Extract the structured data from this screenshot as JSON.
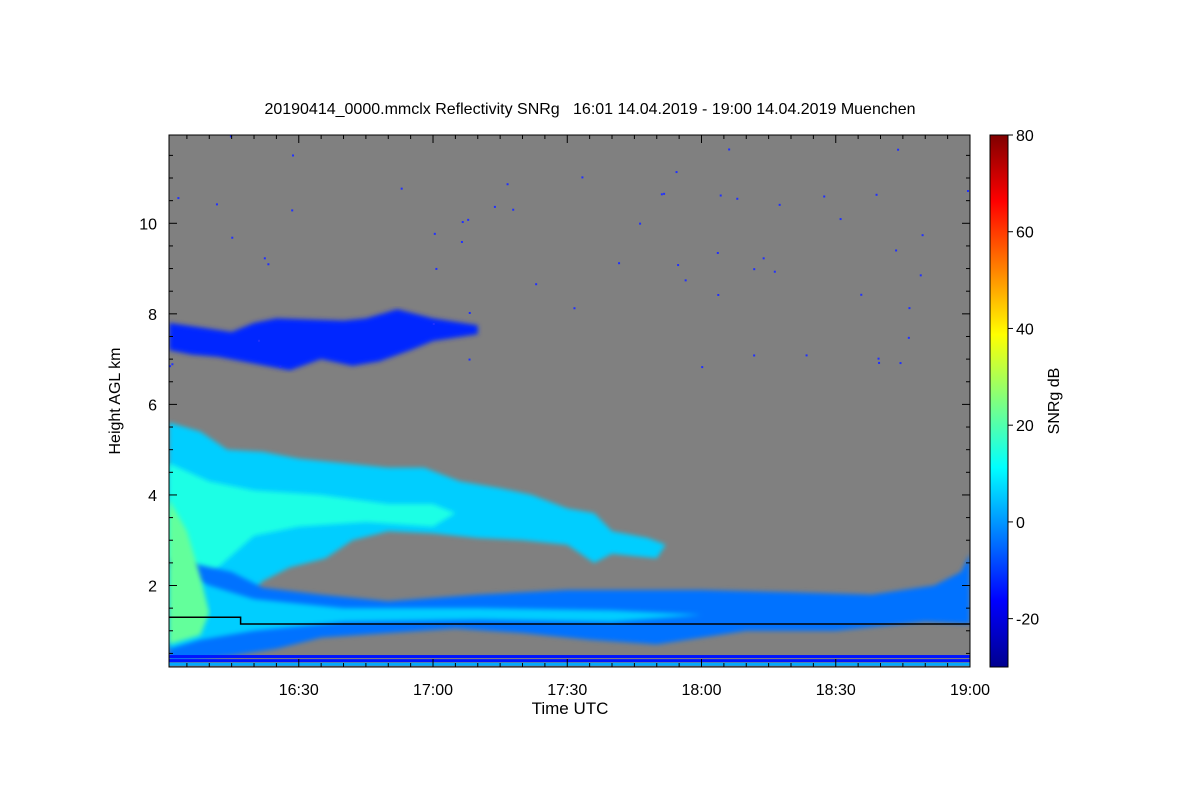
{
  "chart_data": {
    "type": "heatmap",
    "title": "20190414_0000.mmclx Reflectivity SNRg   16:01 14.04.2019 - 19:00 14.04.2019 Muenchen",
    "xlabel": "Time UTC",
    "ylabel": "Height AGL km",
    "colorbar_label": "SNRg dB",
    "xlim_minutes_after_1600": [
      1,
      180
    ],
    "ylim_km": [
      0.2,
      11.95
    ],
    "clim_db": [
      -30,
      80
    ],
    "x_ticks": [
      {
        "label": "16:30",
        "min": 30
      },
      {
        "label": "17:00",
        "min": 60
      },
      {
        "label": "17:30",
        "min": 90
      },
      {
        "label": "18:00",
        "min": 120
      },
      {
        "label": "18:30",
        "min": 150
      },
      {
        "label": "19:00",
        "min": 180
      }
    ],
    "y_ticks": [
      {
        "label": "2",
        "km": 2
      },
      {
        "label": "4",
        "km": 4
      },
      {
        "label": "6",
        "km": 6
      },
      {
        "label": "8",
        "km": 8
      },
      {
        "label": "10",
        "km": 10
      }
    ],
    "colorbar_ticks": [
      {
        "label": "-20",
        "db": -20
      },
      {
        "label": "0",
        "db": 0
      },
      {
        "label": "20",
        "db": 20
      },
      {
        "label": "40",
        "db": 40
      },
      {
        "label": "60",
        "db": 60
      },
      {
        "label": "80",
        "db": 80
      }
    ],
    "background_color": "#808080",
    "layers": [
      {
        "name": "cirrus",
        "snr_db": -12,
        "outline": [
          [
            1,
            7.8
          ],
          [
            8,
            7.7
          ],
          [
            15,
            7.6
          ],
          [
            20,
            7.8
          ],
          [
            25,
            7.9
          ],
          [
            40,
            7.85
          ],
          [
            45,
            7.9
          ],
          [
            52,
            8.1
          ],
          [
            60,
            7.9
          ],
          [
            70,
            7.75
          ],
          [
            70,
            7.55
          ],
          [
            60,
            7.4
          ],
          [
            55,
            7.2
          ],
          [
            48,
            6.95
          ],
          [
            42,
            6.85
          ],
          [
            35,
            7.0
          ],
          [
            28,
            6.75
          ],
          [
            20,
            6.9
          ],
          [
            12,
            7.05
          ],
          [
            6,
            7.1
          ],
          [
            1,
            7.2
          ]
        ]
      },
      {
        "name": "mid-layer",
        "snr_db": 6,
        "outline": [
          [
            1,
            5.6
          ],
          [
            8,
            5.4
          ],
          [
            14,
            5.0
          ],
          [
            22,
            4.95
          ],
          [
            30,
            4.8
          ],
          [
            40,
            4.7
          ],
          [
            50,
            4.6
          ],
          [
            58,
            4.6
          ],
          [
            66,
            4.3
          ],
          [
            75,
            4.15
          ],
          [
            82,
            4.0
          ],
          [
            90,
            3.7
          ],
          [
            96,
            3.6
          ],
          [
            100,
            3.2
          ],
          [
            108,
            3.05
          ],
          [
            112,
            2.9
          ],
          [
            110,
            2.6
          ],
          [
            100,
            2.7
          ],
          [
            96,
            2.5
          ],
          [
            90,
            2.9
          ],
          [
            80,
            3.0
          ],
          [
            70,
            3.05
          ],
          [
            60,
            3.15
          ],
          [
            50,
            3.2
          ],
          [
            42,
            3.0
          ],
          [
            36,
            2.6
          ],
          [
            28,
            2.4
          ],
          [
            22,
            2.1
          ],
          [
            18,
            1.7
          ],
          [
            10,
            1.5
          ],
          [
            1,
            1.5
          ]
        ]
      },
      {
        "name": "mid-layer-core",
        "snr_db": 14,
        "outline": [
          [
            1,
            4.7
          ],
          [
            10,
            4.3
          ],
          [
            20,
            4.1
          ],
          [
            35,
            4.0
          ],
          [
            50,
            3.8
          ],
          [
            60,
            3.8
          ],
          [
            65,
            3.6
          ],
          [
            60,
            3.3
          ],
          [
            45,
            3.4
          ],
          [
            30,
            3.3
          ],
          [
            20,
            3.1
          ],
          [
            12,
            2.4
          ],
          [
            6,
            1.8
          ],
          [
            1,
            1.6
          ]
        ]
      },
      {
        "name": "low-layer",
        "snr_db": -4,
        "outline": [
          [
            1,
            2.6
          ],
          [
            15,
            2.3
          ],
          [
            22,
            1.95
          ],
          [
            35,
            1.8
          ],
          [
            50,
            1.65
          ],
          [
            70,
            1.8
          ],
          [
            90,
            1.9
          ],
          [
            120,
            1.9
          ],
          [
            140,
            1.85
          ],
          [
            158,
            1.8
          ],
          [
            165,
            1.9
          ],
          [
            172,
            2.0
          ],
          [
            178,
            2.3
          ],
          [
            180,
            2.7
          ],
          [
            180,
            1.15
          ],
          [
            170,
            1.2
          ],
          [
            150,
            1.0
          ],
          [
            130,
            1.0
          ],
          [
            110,
            0.7
          ],
          [
            95,
            0.8
          ],
          [
            80,
            0.95
          ],
          [
            65,
            1.05
          ],
          [
            50,
            0.95
          ],
          [
            35,
            0.85
          ],
          [
            25,
            0.6
          ],
          [
            15,
            0.45
          ],
          [
            1,
            0.3
          ]
        ]
      },
      {
        "name": "low-layer-core",
        "snr_db": 6,
        "outline": [
          [
            1,
            2.4
          ],
          [
            10,
            2.0
          ],
          [
            20,
            1.7
          ],
          [
            40,
            1.5
          ],
          [
            70,
            1.5
          ],
          [
            100,
            1.45
          ],
          [
            120,
            1.35
          ],
          [
            100,
            1.2
          ],
          [
            70,
            1.25
          ],
          [
            40,
            1.2
          ],
          [
            20,
            1.0
          ],
          [
            8,
            0.8
          ],
          [
            1,
            0.6
          ]
        ]
      },
      {
        "name": "left-edge-core",
        "snr_db": 22,
        "outline": [
          [
            1,
            3.9
          ],
          [
            5,
            3.2
          ],
          [
            8,
            2.2
          ],
          [
            10,
            1.4
          ],
          [
            8,
            0.9
          ],
          [
            1,
            0.7
          ]
        ]
      }
    ],
    "surface_bands_km": [
      0.25,
      0.33,
      0.42
    ],
    "black_line": [
      [
        1,
        1.3
      ],
      [
        17,
        1.3
      ],
      [
        17,
        1.15
      ],
      [
        180,
        1.15
      ]
    ]
  }
}
